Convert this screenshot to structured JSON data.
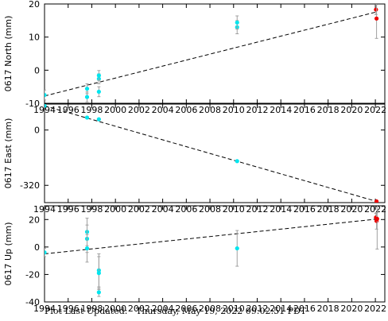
{
  "footer": {
    "label": "Plot Last Updated:",
    "timestamp": "Thursday, May 19, 2022 09:02:51 PDT"
  },
  "colors": {
    "early_points": "#00e5ee",
    "recent_points": "#ee0000",
    "trend_line": "#000000",
    "error_bars": "#a0a0a0"
  },
  "chart_data": [
    {
      "type": "scatter",
      "ylabel": "0617 North (mm)",
      "xlim": [
        1994,
        2022.8
      ],
      "ylim": [
        -10,
        20
      ],
      "yticks": [
        -10,
        0,
        10,
        20
      ],
      "xticks": [
        "1994",
        "1996",
        "1998",
        "2000",
        "2002",
        "2004",
        "2006",
        "2008",
        "2010",
        "2012",
        "2014",
        "2016",
        "2018",
        "2020",
        "2022"
      ],
      "trend": [
        [
          1994.0,
          -7.8
        ],
        [
          2022.1,
          17.6
        ]
      ],
      "series": [
        {
          "color_key": "early_points",
          "points": [
            {
              "x": 1994.0,
              "y": -7.5,
              "err": 1.5
            },
            {
              "x": 1997.6,
              "y": -8.1,
              "err": 1.5
            },
            {
              "x": 1997.6,
              "y": -5.6,
              "err": 1.5
            },
            {
              "x": 1998.6,
              "y": -6.5,
              "err": 1.5
            },
            {
              "x": 1998.6,
              "y": -2.6,
              "err": 1.5
            },
            {
              "x": 1998.6,
              "y": -1.6,
              "err": 1.5
            },
            {
              "x": 2010.3,
              "y": 13.0,
              "err": 2.0
            },
            {
              "x": 2010.3,
              "y": 14.4,
              "err": 2.0
            }
          ]
        },
        {
          "color_key": "recent_points",
          "points": [
            {
              "x": 2022.05,
              "y": 18.3,
              "err": 1.5
            },
            {
              "x": 2022.1,
              "y": 15.6,
              "err": 6.0
            }
          ]
        }
      ]
    },
    {
      "type": "scatter",
      "ylabel": "0617 East (mm)",
      "xlim": [
        1994,
        2022.8
      ],
      "ylim": [
        -420,
        150
      ],
      "yticks": [
        0,
        -320
      ],
      "xticks": [
        "1994",
        "1996",
        "1998",
        "2000",
        "2002",
        "2004",
        "2006",
        "2008",
        "2010",
        "2012",
        "2014",
        "2016",
        "2018",
        "2020",
        "2022"
      ],
      "trend": [
        [
          1994.0,
          140.0
        ],
        [
          2022.1,
          -413.0
        ]
      ],
      "series": [
        {
          "color_key": "early_points",
          "points": [
            {
              "x": 1994.0,
              "y": 140.0,
              "err": 3.0
            },
            {
              "x": 1997.6,
              "y": 72.0,
              "err": 3.0
            },
            {
              "x": 1998.6,
              "y": 62.0,
              "err": 3.0
            },
            {
              "x": 2010.3,
              "y": -180.0,
              "err": 3.0
            }
          ]
        },
        {
          "color_key": "recent_points",
          "points": [
            {
              "x": 2022.1,
              "y": -413.0,
              "err": 3.0
            }
          ]
        }
      ]
    },
    {
      "type": "scatter",
      "ylabel": "0617 Up (mm)",
      "xlim": [
        1994,
        2022.8
      ],
      "ylim": [
        -40,
        30
      ],
      "yticks": [
        -40,
        -20,
        0,
        20
      ],
      "xticks": [
        "1994",
        "1996",
        "1998",
        "2000",
        "2002",
        "2004",
        "2006",
        "2008",
        "2010",
        "2012",
        "2014",
        "2016",
        "2018",
        "2020",
        "2022"
      ],
      "trend": [
        [
          1994.0,
          -5.0
        ],
        [
          2022.1,
          20.3
        ]
      ],
      "series": [
        {
          "color_key": "early_points",
          "points": [
            {
              "x": 1994.0,
              "y": -4.0,
              "err": 3.0
            },
            {
              "x": 1997.6,
              "y": 11.0,
              "err": 10.0
            },
            {
              "x": 1997.6,
              "y": 6.0,
              "err": 10.0
            },
            {
              "x": 1997.6,
              "y": -1.0,
              "err": 10.0
            },
            {
              "x": 1998.6,
              "y": -17.0,
              "err": 12.0
            },
            {
              "x": 1998.6,
              "y": -19.0,
              "err": 12.0
            },
            {
              "x": 1998.6,
              "y": -33.0,
              "err": 3.0
            },
            {
              "x": 2010.3,
              "y": -1.0,
              "err": 13.0
            }
          ]
        },
        {
          "color_key": "recent_points",
          "points": [
            {
              "x": 2022.05,
              "y": 21.5,
              "err": 3.0
            },
            {
              "x": 2022.1,
              "y": 19.0,
              "err": 6.0
            },
            {
              "x": 2022.15,
              "y": 20.5,
              "err": 22.0
            }
          ]
        }
      ]
    }
  ]
}
